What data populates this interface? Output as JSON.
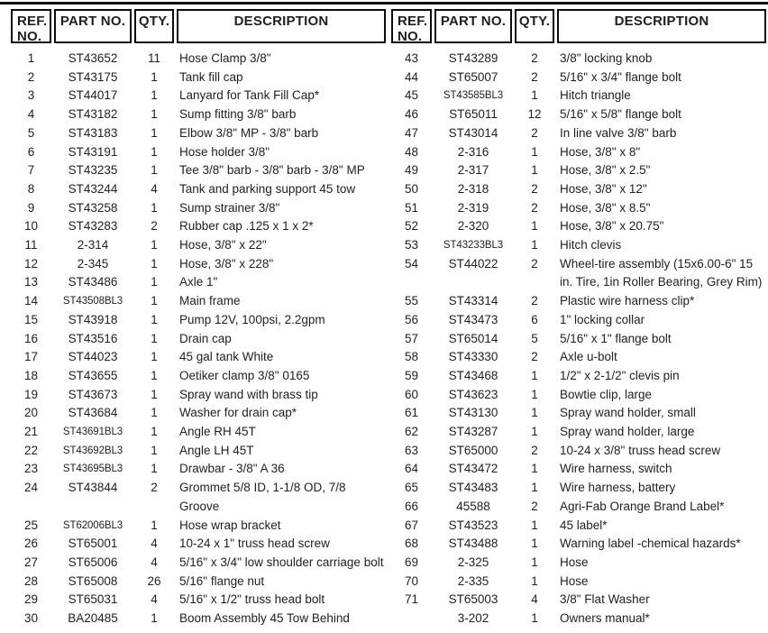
{
  "colors": {
    "text": "#1f1f1f",
    "border": "#0c0c0c",
    "background": "#ffffff"
  },
  "header": {
    "ref_line1": "REF.",
    "ref_line2": "NO.",
    "part": "PART NO.",
    "qty": "QTY.",
    "desc": "DESCRIPTION"
  },
  "tables": [
    {
      "side": "left",
      "rows": [
        {
          "ref": "1",
          "part": "ST43652",
          "qty": "11",
          "desc": "Hose Clamp 3/8\""
        },
        {
          "ref": "2",
          "part": "ST43175",
          "qty": "1",
          "desc": "Tank fill cap"
        },
        {
          "ref": "3",
          "part": "ST44017",
          "qty": "1",
          "desc": "Lanyard for Tank Fill Cap*"
        },
        {
          "ref": "4",
          "part": "ST43182",
          "qty": "1",
          "desc": "Sump fitting 3/8\" barb"
        },
        {
          "ref": "5",
          "part": "ST43183",
          "qty": "1",
          "desc": "Elbow 3/8\" MP - 3/8\" barb"
        },
        {
          "ref": "6",
          "part": "ST43191",
          "qty": "1",
          "desc": "Hose holder 3/8\""
        },
        {
          "ref": "7",
          "part": "ST43235",
          "qty": "1",
          "desc": "Tee 3/8\" barb - 3/8\" barb - 3/8\" MP"
        },
        {
          "ref": "8",
          "part": "ST43244",
          "qty": "4",
          "desc": "Tank and parking support 45 tow"
        },
        {
          "ref": "9",
          "part": "ST43258",
          "qty": "1",
          "desc": "Sump strainer 3/8\""
        },
        {
          "ref": "10",
          "part": "ST43283",
          "qty": "2",
          "desc": "Rubber cap .125 x 1 x 2*"
        },
        {
          "ref": "11",
          "part": "2-314",
          "qty": "1",
          "desc": "Hose, 3/8\" x 22\""
        },
        {
          "ref": "12",
          "part": "2-345",
          "qty": "1",
          "desc": "Hose, 3/8\" x 228\""
        },
        {
          "ref": "13",
          "part": "ST43486",
          "qty": "1",
          "desc": "Axle 1\""
        },
        {
          "ref": "14",
          "part": "ST43508BL3",
          "qty": "1",
          "desc": "Main frame"
        },
        {
          "ref": "15",
          "part": "ST43918",
          "qty": "1",
          "desc": "Pump 12V, 100psi, 2.2gpm"
        },
        {
          "ref": "16",
          "part": "ST43516",
          "qty": "1",
          "desc": "Drain cap"
        },
        {
          "ref": "17",
          "part": "ST44023",
          "qty": "1",
          "desc": "45 gal tank White"
        },
        {
          "ref": "18",
          "part": "ST43655",
          "qty": "1",
          "desc": "Oetiker clamp 3/8\" 0165"
        },
        {
          "ref": "19",
          "part": "ST43673",
          "qty": "1",
          "desc": "Spray wand with brass tip"
        },
        {
          "ref": "20",
          "part": "ST43684",
          "qty": "1",
          "desc": "Washer for drain cap*"
        },
        {
          "ref": "21",
          "part": "ST43691BL3",
          "qty": "1",
          "desc": "Angle RH 45T"
        },
        {
          "ref": "22",
          "part": "ST43692BL3",
          "qty": "1",
          "desc": "Angle LH 45T"
        },
        {
          "ref": "23",
          "part": "ST43695BL3",
          "qty": "1",
          "desc": "Drawbar - 3/8\" A 36"
        },
        {
          "ref": "24",
          "part": "ST43844",
          "qty": "2",
          "desc": "Grommet 5/8 ID, 1-1/8 OD, 7/8 Groove"
        },
        {
          "ref": "25",
          "part": "ST62006BL3",
          "qty": "1",
          "desc": "Hose wrap bracket"
        },
        {
          "ref": "26",
          "part": "ST65001",
          "qty": "4",
          "desc": "10-24 x 1\" truss head screw"
        },
        {
          "ref": "27",
          "part": "ST65006",
          "qty": "4",
          "desc": "5/16\" x 3/4\" low shoulder carriage bolt"
        },
        {
          "ref": "28",
          "part": "ST65008",
          "qty": "26",
          "desc": "5/16\" flange nut"
        },
        {
          "ref": "29",
          "part": "ST65031",
          "qty": "4",
          "desc": "5/16\" x 1/2\" truss head bolt"
        },
        {
          "ref": "30",
          "part": "BA20485",
          "qty": "1",
          "desc": "Boom Assembly 45 Tow Behind"
        }
      ]
    },
    {
      "side": "right",
      "rows": [
        {
          "ref": "43",
          "part": "ST43289",
          "qty": "2",
          "desc": "3/8\" locking knob"
        },
        {
          "ref": "44",
          "part": "ST65007",
          "qty": "2",
          "desc": "5/16\" x 3/4\" flange bolt"
        },
        {
          "ref": "45",
          "part": "ST43585BL3",
          "qty": "1",
          "desc": "Hitch triangle"
        },
        {
          "ref": "46",
          "part": "ST65011",
          "qty": "12",
          "desc": "5/16\" x 5/8\" flange bolt"
        },
        {
          "ref": "47",
          "part": "ST43014",
          "qty": "2",
          "desc": "In line valve 3/8\" barb"
        },
        {
          "ref": "48",
          "part": "2-316",
          "qty": "1",
          "desc": "Hose, 3/8\" x 8\""
        },
        {
          "ref": "49",
          "part": "2-317",
          "qty": "1",
          "desc": "Hose, 3/8\" x 2.5\""
        },
        {
          "ref": "50",
          "part": "2-318",
          "qty": "2",
          "desc": "Hose, 3/8\" x 12\""
        },
        {
          "ref": "51",
          "part": "2-319",
          "qty": "2",
          "desc": "Hose, 3/8\" x 8.5\""
        },
        {
          "ref": "52",
          "part": "2-320",
          "qty": "1",
          "desc": "Hose, 3/8\" x 20.75\""
        },
        {
          "ref": "53",
          "part": "ST43233BL3",
          "qty": "1",
          "desc": "Hitch clevis"
        },
        {
          "ref": "54",
          "part": "ST44022",
          "qty": "2",
          "desc": "Wheel-tire assembly (15x6.00-6\" 15 in. Tire, 1in Roller Bearing, Grey Rim)"
        },
        {
          "ref": "55",
          "part": "ST43314",
          "qty": "2",
          "desc": "Plastic wire harness clip*"
        },
        {
          "ref": "56",
          "part": "ST43473",
          "qty": "6",
          "desc": "1\" locking collar"
        },
        {
          "ref": "57",
          "part": "ST65014",
          "qty": "5",
          "desc": "5/16\" x 1\" flange bolt"
        },
        {
          "ref": "58",
          "part": "ST43330",
          "qty": "2",
          "desc": "Axle u-bolt"
        },
        {
          "ref": "59",
          "part": "ST43468",
          "qty": "1",
          "desc": "1/2\" x 2-1/2\" clevis pin"
        },
        {
          "ref": "60",
          "part": "ST43623",
          "qty": "1",
          "desc": "Bowtie clip, large"
        },
        {
          "ref": "61",
          "part": "ST43130",
          "qty": "1",
          "desc": "Spray wand holder, small"
        },
        {
          "ref": "62",
          "part": "ST43287",
          "qty": "1",
          "desc": "Spray wand holder, large"
        },
        {
          "ref": "63",
          "part": "ST65000",
          "qty": "2",
          "desc": "10-24 x 3/8\" truss head screw"
        },
        {
          "ref": "64",
          "part": "ST43472",
          "qty": "1",
          "desc": "Wire harness, switch"
        },
        {
          "ref": "65",
          "part": "ST43483",
          "qty": "1",
          "desc": "Wire harness, battery"
        },
        {
          "ref": "66",
          "part": "45588",
          "qty": "2",
          "desc": "Agri-Fab Orange Brand Label*"
        },
        {
          "ref": "67",
          "part": "ST43523",
          "qty": "1",
          "desc": "45 label*"
        },
        {
          "ref": "68",
          "part": "ST43488",
          "qty": "1",
          "desc": "Warning label -chemical hazards*"
        },
        {
          "ref": "69",
          "part": "2-325",
          "qty": "1",
          "desc": "Hose"
        },
        {
          "ref": "70",
          "part": "2-335",
          "qty": "1",
          "desc": "Hose"
        },
        {
          "ref": "71",
          "part": "ST65003",
          "qty": "4",
          "desc": "3/8\" Flat Washer"
        },
        {
          "ref": "",
          "part": "3-202",
          "qty": "1",
          "desc": "Owners manual*"
        }
      ]
    }
  ]
}
